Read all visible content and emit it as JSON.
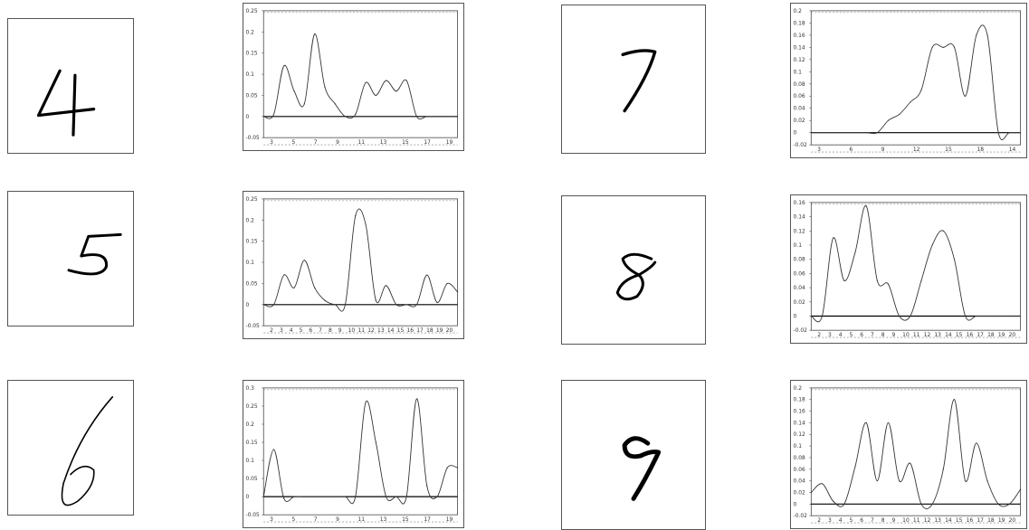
{
  "colors": {
    "ink": "#000000",
    "curve": "#333333",
    "frame": "#444444",
    "background": "#ffffff"
  },
  "samples": [
    {
      "digit": "4",
      "label": "handwritten-4"
    },
    {
      "digit": "5",
      "label": "handwritten-5"
    },
    {
      "digit": "6",
      "label": "handwritten-6"
    },
    {
      "digit": "7",
      "label": "handwritten-7"
    },
    {
      "digit": "8",
      "label": "handwritten-8"
    },
    {
      "digit": "9",
      "label": "handwritten-9"
    }
  ],
  "chart_data": [
    {
      "type": "line",
      "digit": "4",
      "x": [
        1,
        2,
        3,
        4,
        5,
        6,
        7,
        8,
        9,
        10,
        11,
        12,
        13,
        14,
        15,
        16,
        17,
        18,
        19,
        20
      ],
      "values": [
        0.0,
        0.005,
        0.12,
        0.06,
        0.03,
        0.195,
        0.07,
        0.03,
        0.0,
        0.005,
        0.08,
        0.05,
        0.085,
        0.06,
        0.085,
        0.0,
        0.0,
        0.0,
        0.0,
        0.0
      ],
      "ylim": [
        -0.05,
        0.25
      ],
      "yticks": [
        "0.25",
        "0.2",
        "0.15",
        "0.1",
        "0.05",
        "0",
        "-0.05"
      ],
      "xticks": [
        "3",
        "5",
        "7",
        "9",
        "11",
        "13",
        "15",
        "17",
        "19"
      ]
    },
    {
      "type": "line",
      "digit": "5",
      "x": [
        1,
        2,
        3,
        4,
        5,
        6,
        7,
        8,
        9,
        10,
        11,
        12,
        13,
        14,
        15,
        16,
        17,
        18,
        19,
        20
      ],
      "values": [
        0.0,
        0.0,
        0.07,
        0.04,
        0.105,
        0.04,
        0.01,
        0.0,
        0.0,
        0.21,
        0.19,
        0.01,
        0.045,
        0.0,
        0.0,
        0.0,
        0.07,
        0.005,
        0.05,
        0.03
      ],
      "ylim": [
        -0.05,
        0.25
      ],
      "yticks": [
        "0.25",
        "0.2",
        "0.15",
        "0.1",
        "0.05",
        "0",
        "-0.05"
      ],
      "xticks": [
        "2",
        "3",
        "4",
        "5",
        "6",
        "7",
        "8",
        "9",
        "10",
        "11",
        "12",
        "13",
        "14",
        "15",
        "16",
        "17",
        "18",
        "19",
        "20"
      ]
    },
    {
      "type": "line",
      "digit": "6",
      "x": [
        1,
        2,
        3,
        4,
        5,
        6,
        7,
        8,
        9,
        10,
        11,
        12,
        13,
        14,
        15,
        16,
        17,
        18,
        19,
        20
      ],
      "values": [
        0.0,
        0.13,
        -0.005,
        0.0,
        0.0,
        0.0,
        0.0,
        0.0,
        0.0,
        0.0,
        0.26,
        0.15,
        0.0,
        0.0,
        0.0,
        0.27,
        0.03,
        0.0,
        0.08,
        0.08
      ],
      "ylim": [
        -0.05,
        0.3
      ],
      "yticks": [
        "0.3",
        "0.25",
        "0.2",
        "0.15",
        "0.1",
        "0.05",
        "0",
        "-0.05"
      ],
      "xticks": [
        "3",
        "5",
        "7",
        "9",
        "11",
        "13",
        "15",
        "17",
        "19"
      ]
    },
    {
      "type": "line",
      "digit": "7",
      "x": [
        1,
        2,
        3,
        4,
        5,
        6,
        7,
        8,
        9,
        10,
        11,
        12,
        13,
        14,
        15,
        16,
        17,
        18,
        19,
        20
      ],
      "values": [
        0.0,
        0.0,
        0.0,
        0.0,
        0.0,
        0.0,
        0.0,
        0.02,
        0.03,
        0.05,
        0.07,
        0.14,
        0.14,
        0.14,
        0.06,
        0.16,
        0.16,
        0.0,
        0.0,
        0.0
      ],
      "ylim": [
        -0.02,
        0.2
      ],
      "yticks": [
        "0.2",
        "0.18",
        "0.16",
        "0.14",
        "0.12",
        "0.1",
        "0.08",
        "0.06",
        "0.04",
        "0.02",
        "0",
        "-0.02"
      ],
      "xticks": [
        "3",
        "6",
        "9",
        "12",
        "15",
        "18",
        "14"
      ]
    },
    {
      "type": "line",
      "digit": "8",
      "x": [
        1,
        2,
        3,
        4,
        5,
        6,
        7,
        8,
        9,
        10,
        11,
        12,
        13,
        14,
        15,
        16,
        17,
        18,
        19,
        20
      ],
      "values": [
        0.0,
        0.0,
        0.11,
        0.05,
        0.09,
        0.155,
        0.05,
        0.045,
        0.0,
        0.0,
        0.05,
        0.1,
        0.12,
        0.08,
        0.0,
        0.0,
        0.0,
        0.0,
        0.0,
        0.0
      ],
      "ylim": [
        -0.02,
        0.16
      ],
      "yticks": [
        "0.16",
        "0.14",
        "0.12",
        "0.1",
        "0.08",
        "0.06",
        "0.04",
        "0.02",
        "0",
        "-0.02"
      ],
      "xticks": [
        "2",
        "3",
        "4",
        "5",
        "6",
        "7",
        "8",
        "9",
        "10",
        "11",
        "12",
        "13",
        "14",
        "15",
        "16",
        "17",
        "18",
        "19",
        "20"
      ]
    },
    {
      "type": "line",
      "digit": "9",
      "x": [
        1,
        2,
        3,
        4,
        5,
        6,
        7,
        8,
        9,
        10,
        11,
        12,
        13,
        14,
        15,
        16,
        17,
        18,
        19,
        20
      ],
      "values": [
        0.02,
        0.035,
        0.005,
        0.0,
        0.065,
        0.14,
        0.04,
        0.14,
        0.04,
        0.07,
        0.0,
        0.0,
        0.06,
        0.18,
        0.04,
        0.105,
        0.04,
        0.0,
        0.0,
        0.025
      ],
      "ylim": [
        -0.02,
        0.2
      ],
      "yticks": [
        "0.2",
        "0.18",
        "0.16",
        "0.14",
        "0.12",
        "0.1",
        "0.08",
        "0.06",
        "0.04",
        "0.02",
        "0",
        "-0.02"
      ],
      "xticks": [
        "2",
        "3",
        "4",
        "5",
        "6",
        "7",
        "8",
        "9",
        "10",
        "11",
        "12",
        "13",
        "14",
        "15",
        "16",
        "17",
        "18",
        "19",
        "20"
      ]
    }
  ]
}
